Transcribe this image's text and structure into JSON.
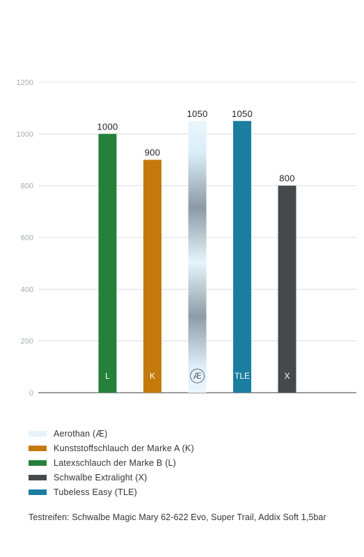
{
  "chart_data": {
    "type": "bar",
    "categories": [
      "L",
      "K",
      "Æ",
      "TLE",
      "X"
    ],
    "values": [
      1000,
      900,
      1050,
      1050,
      800
    ],
    "value_labels": [
      "1000",
      "900",
      "1050",
      "1050",
      "800"
    ],
    "colors": [
      "#25803a",
      "#c47a0a",
      "aerothan-gradient",
      "#1b7ea0",
      "#46494c"
    ],
    "ylim": [
      0,
      1200
    ],
    "yticks": [
      0,
      200,
      400,
      600,
      800,
      1000,
      1200
    ],
    "grid": true,
    "legend_position": "bottom",
    "title": "",
    "xlabel": "",
    "ylabel": ""
  },
  "legend": [
    {
      "label": "Aerothan (Æ)",
      "color": "#e6f3fb"
    },
    {
      "label": "Kunststoffschlauch der Marke A (K)",
      "color": "#c47a0a"
    },
    {
      "label": "Latexschlauch der Marke B (L)",
      "color": "#25803a"
    },
    {
      "label": "Schwalbe Extralight (X)",
      "color": "#46494c"
    },
    {
      "label": "Tubeless Easy (TLE)",
      "color": "#1b7ea0"
    }
  ],
  "footnote": "Testreifen: Schwalbe Magic Mary 62-622 Evo, Super Trail, Addix Soft 1,5bar"
}
